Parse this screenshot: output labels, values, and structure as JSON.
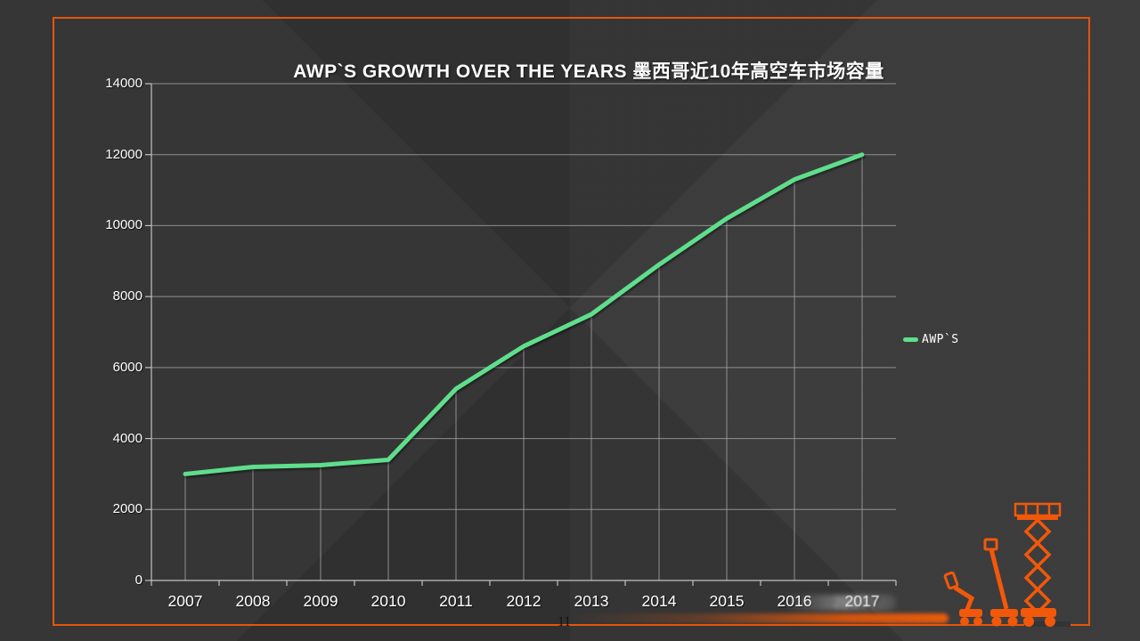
{
  "slide": {
    "title": "AWP`S GROWTH OVER THE YEARS 墨西哥近10年高空车市场容量",
    "page_number": "11"
  },
  "legend": {
    "label": "AWP`S"
  },
  "colors": {
    "background": "#343434",
    "border_orange": "#E4560B",
    "line_green": "#5FDE8C",
    "gridline_gray": "#A6A6A6",
    "axis_gray": "#C2C2C2",
    "label_white": "#FFFFFF",
    "lift_icon_orange": "#F2580A",
    "page_number_black": "#141414"
  },
  "decorations": {
    "lift_icons": [
      "articulated-boom-lift-icon",
      "telescopic-boom-lift-icon",
      "scissor-lift-icon"
    ],
    "effects": [
      "motion-blur-streak behind 2017 label",
      "orange speed streak along bottom border"
    ]
  },
  "chart_data": {
    "type": "line",
    "title": "AWP`S GROWTH OVER THE YEARS 墨西哥近10年高空车市场容量",
    "categories": [
      "2007",
      "2008",
      "2009",
      "2010",
      "2011",
      "2012",
      "2013",
      "2014",
      "2015",
      "2016",
      "2017"
    ],
    "series": [
      {
        "name": "AWP`S",
        "color": "#5FDE8C",
        "values": [
          3000,
          3200,
          3250,
          3400,
          5400,
          6600,
          7500,
          8900,
          10200,
          11300,
          12000
        ]
      }
    ],
    "xlabel": "",
    "ylabel": "",
    "ylim": [
      0,
      14000
    ],
    "yticks": [
      0,
      2000,
      4000,
      6000,
      8000,
      10000,
      12000,
      14000
    ],
    "grid": "horizontal gridlines plus vertical drop lines from each data point to x-axis",
    "legend_position": "right-middle"
  }
}
